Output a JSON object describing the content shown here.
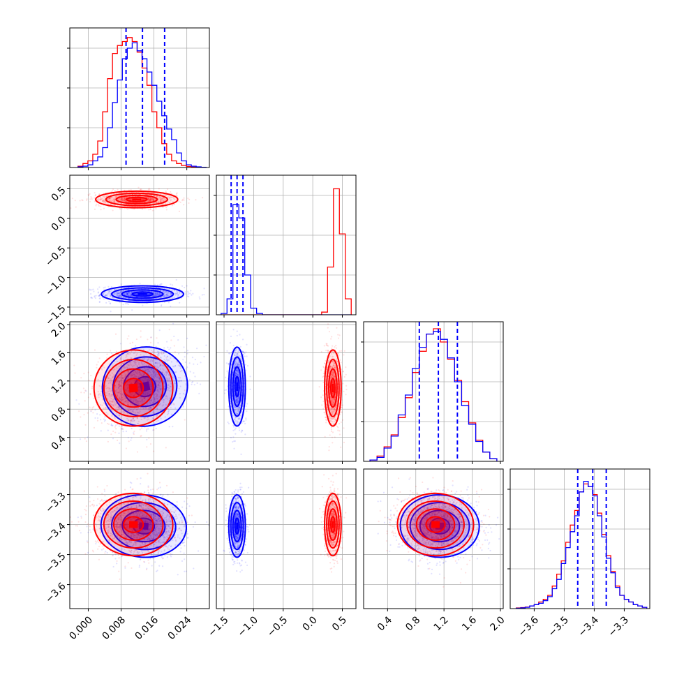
{
  "colors": {
    "red": "#ff0000",
    "blue": "#0000ff",
    "grid": "#b0b0b0"
  },
  "chart_data": {
    "type": "corner",
    "title": "",
    "series": [
      {
        "name": "",
        "color": "#ff0000"
      },
      {
        "name": "",
        "color": "#0000ff"
      }
    ],
    "grid": true,
    "quantiles_blue": [
      [
        0.0092,
        0.0132,
        0.0186
      ],
      [
        -1.38,
        -1.28,
        -1.18
      ],
      [
        0.85,
        1.12,
        1.39
      ],
      [
        -3.455,
        -3.405,
        -3.36
      ]
    ],
    "params": [
      {
        "range": [
          -0.0045,
          0.0295
        ],
        "ticks": [
          "0.000",
          "0.008",
          "0.016",
          "0.024"
        ],
        "tick_values": [
          0.0,
          0.008,
          0.016,
          0.024
        ]
      },
      {
        "range": [
          -1.63,
          0.73
        ],
        "ticks": [
          "−1.5",
          "−1.0",
          "−0.5",
          "0.0",
          "0.5"
        ],
        "tick_values": [
          -1.5,
          -1.0,
          -0.5,
          0.0,
          0.5
        ]
      },
      {
        "range": [
          0.06,
          2.04
        ],
        "ticks": [
          "0.4",
          "0.8",
          "1.2",
          "1.6",
          "2.0"
        ],
        "tick_values": [
          0.4,
          0.8,
          1.2,
          1.6,
          2.0
        ]
      },
      {
        "range": [
          -3.68,
          -3.215
        ],
        "ticks": [
          "−3.6",
          "−3.5",
          "−3.4",
          "−3.3"
        ],
        "tick_values": [
          -3.6,
          -3.5,
          -3.4,
          -3.3
        ]
      }
    ],
    "histograms": [
      {
        "param": 0,
        "bin_edges": [
          -0.0025,
          -0.0013,
          -0.0001,
          0.0011,
          0.0023,
          0.0035,
          0.0047,
          0.0059,
          0.0071,
          0.0083,
          0.0095,
          0.0107,
          0.0119,
          0.0131,
          0.0143,
          0.0155,
          0.0167,
          0.0179,
          0.0191,
          0.0203,
          0.0215,
          0.0227,
          0.0239,
          0.0251,
          0.0263,
          0.0275,
          0.0287
        ],
        "red": [
          0.01,
          0.03,
          0.05,
          0.1,
          0.2,
          0.42,
          0.67,
          0.86,
          0.92,
          0.95,
          0.98,
          0.95,
          0.87,
          0.75,
          0.62,
          0.42,
          0.3,
          0.18,
          0.1,
          0.05,
          0.03,
          0.015,
          0.008,
          0.004,
          0.002,
          0.001
        ],
        "blue": [
          0.005,
          0.01,
          0.02,
          0.05,
          0.08,
          0.15,
          0.3,
          0.49,
          0.66,
          0.82,
          0.9,
          0.94,
          0.88,
          0.82,
          0.72,
          0.62,
          0.5,
          0.39,
          0.29,
          0.21,
          0.11,
          0.05,
          0.02,
          0.01,
          0.005,
          0.002
        ]
      },
      {
        "param": 1,
        "bin_edges": [
          -1.55,
          -1.45,
          -1.35,
          -1.25,
          -1.15,
          -1.05,
          -0.95,
          -0.85,
          -0.75,
          -0.65,
          -0.55,
          -0.45,
          -0.35,
          -0.25,
          -0.15,
          -0.05,
          0.05,
          0.15,
          0.25,
          0.35,
          0.45,
          0.55,
          0.65
        ],
        "red": [
          0,
          0,
          0,
          0,
          0,
          0,
          0,
          0,
          0,
          0,
          0,
          0,
          0,
          0,
          0,
          0,
          0,
          0.02,
          0.36,
          0.95,
          0.61,
          0.12
        ],
        "blue": [
          0.01,
          0.12,
          0.83,
          0.73,
          0.3,
          0.05,
          0.01,
          0,
          0,
          0,
          0,
          0,
          0,
          0,
          0,
          0,
          0,
          0,
          0,
          0,
          0,
          0
        ]
      },
      {
        "param": 2,
        "bin_edges": [
          0.15,
          0.25,
          0.35,
          0.45,
          0.55,
          0.65,
          0.75,
          0.85,
          0.95,
          1.05,
          1.15,
          1.25,
          1.35,
          1.45,
          1.55,
          1.65,
          1.75,
          1.85,
          1.95
        ],
        "red": [
          0.01,
          0.04,
          0.11,
          0.2,
          0.33,
          0.48,
          0.67,
          0.83,
          0.96,
          1.0,
          0.9,
          0.77,
          0.61,
          0.45,
          0.29,
          0.16,
          0.07,
          0.02
        ],
        "blue": [
          0.01,
          0.03,
          0.1,
          0.19,
          0.35,
          0.5,
          0.7,
          0.86,
          0.96,
          0.98,
          0.92,
          0.78,
          0.6,
          0.42,
          0.28,
          0.15,
          0.07,
          0.02
        ]
      },
      {
        "param": 3,
        "bin_edges": [
          -3.66,
          -3.645,
          -3.63,
          -3.615,
          -3.6,
          -3.585,
          -3.57,
          -3.555,
          -3.54,
          -3.525,
          -3.51,
          -3.495,
          -3.48,
          -3.465,
          -3.45,
          -3.435,
          -3.42,
          -3.405,
          -3.39,
          -3.375,
          -3.36,
          -3.345,
          -3.33,
          -3.315,
          -3.3,
          -3.285,
          -3.27,
          -3.255,
          -3.24,
          -3.225
        ],
        "red": [
          0.005,
          0.008,
          0.012,
          0.02,
          0.03,
          0.05,
          0.07,
          0.1,
          0.17,
          0.26,
          0.36,
          0.5,
          0.63,
          0.74,
          0.88,
          0.94,
          0.92,
          0.86,
          0.72,
          0.56,
          0.4,
          0.28,
          0.17,
          0.1,
          0.07,
          0.05,
          0.03,
          0.02,
          0.01
        ],
        "blue": [
          0.003,
          0.006,
          0.01,
          0.02,
          0.03,
          0.04,
          0.06,
          0.09,
          0.15,
          0.22,
          0.34,
          0.46,
          0.58,
          0.7,
          0.88,
          0.96,
          0.92,
          0.85,
          0.7,
          0.54,
          0.38,
          0.27,
          0.16,
          0.1,
          0.07,
          0.05,
          0.03,
          0.02,
          0.01
        ]
      }
    ],
    "samples_2d": [
      {
        "x_param": 0,
        "y_param": 1,
        "red": {
          "mx": 0.0118,
          "my": 0.32,
          "sx": 0.005,
          "sy": 0.07,
          "rho": 0.0
        },
        "blue": {
          "mx": 0.0132,
          "my": -1.28,
          "sx": 0.005,
          "sy": 0.07,
          "rho": 0.0
        }
      },
      {
        "x_param": 0,
        "y_param": 2,
        "red": {
          "mx": 0.011,
          "my": 1.1,
          "sx": 0.0048,
          "sy": 0.27,
          "rho": 0.15
        },
        "blue": {
          "mx": 0.0138,
          "my": 1.12,
          "sx": 0.0052,
          "sy": 0.28,
          "rho": 0.35
        }
      },
      {
        "x_param": 0,
        "y_param": 3,
        "red": {
          "mx": 0.011,
          "my": -3.4,
          "sx": 0.0048,
          "sy": 0.052,
          "rho": -0.05
        },
        "blue": {
          "mx": 0.0135,
          "my": -3.405,
          "sx": 0.0052,
          "sy": 0.052,
          "rho": -0.1
        }
      },
      {
        "x_param": 1,
        "y_param": 2,
        "red": {
          "mx": 0.34,
          "my": 1.1,
          "sx": 0.07,
          "sy": 0.27,
          "rho": 0.0
        },
        "blue": {
          "mx": -1.28,
          "my": 1.12,
          "sx": 0.07,
          "sy": 0.28,
          "rho": 0.0
        }
      },
      {
        "x_param": 1,
        "y_param": 3,
        "red": {
          "mx": 0.34,
          "my": -3.4,
          "sx": 0.07,
          "sy": 0.052,
          "rho": 0.0
        },
        "blue": {
          "mx": -1.28,
          "my": -3.405,
          "sx": 0.07,
          "sy": 0.052,
          "rho": 0.0
        }
      },
      {
        "x_param": 2,
        "y_param": 3,
        "red": {
          "mx": 1.08,
          "my": -3.4,
          "sx": 0.27,
          "sy": 0.052,
          "rho": -0.05
        },
        "blue": {
          "mx": 1.14,
          "my": -3.405,
          "sx": 0.28,
          "sy": 0.052,
          "rho": -0.05
        }
      }
    ]
  }
}
